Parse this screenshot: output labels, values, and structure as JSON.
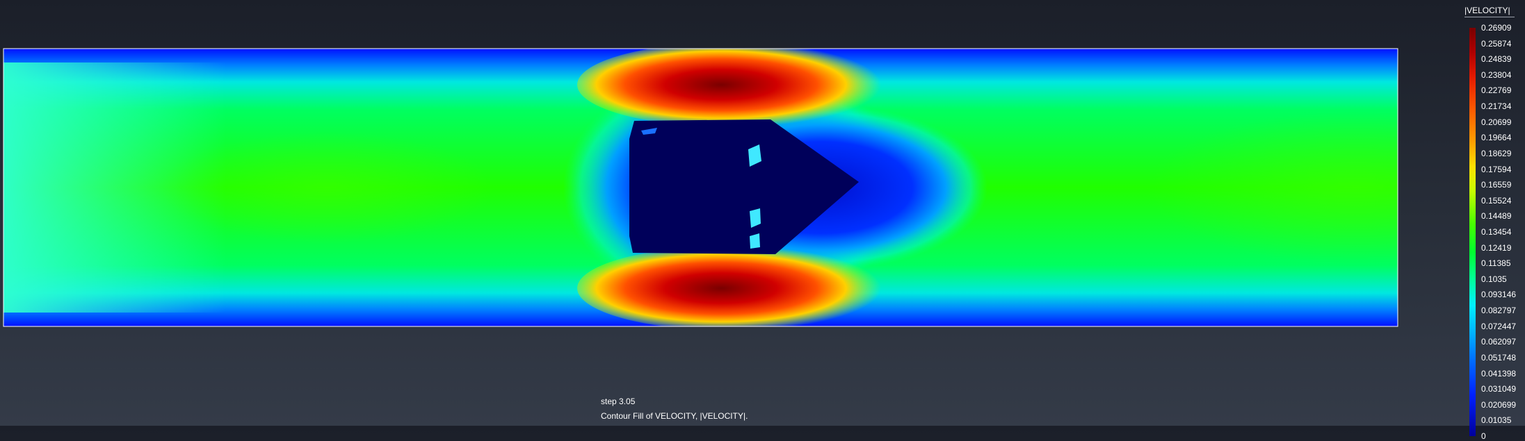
{
  "viewer": {
    "step_label": "step 3.05",
    "contour_label": "Contour Fill of VELOCITY, |VELOCITY|."
  },
  "legend": {
    "title": "|VELOCITY|",
    "values": [
      "0.26909",
      "0.25874",
      "0.24839",
      "0.23804",
      "0.22769",
      "0.21734",
      "0.20699",
      "0.19664",
      "0.18629",
      "0.17594",
      "0.16559",
      "0.15524",
      "0.14489",
      "0.13454",
      "0.12419",
      "0.11385",
      "0.1035",
      "0.093146",
      "0.082797",
      "0.072447",
      "0.062097",
      "0.051748",
      "0.041398",
      "0.031049",
      "0.020699",
      "0.01035",
      "0"
    ]
  },
  "colors": {
    "background_top": "#1b1f29",
    "background_bottom": "#343b48",
    "domain_border": "#ffffff",
    "low_velocity": "#00009a",
    "mid_velocity": "#00ff30",
    "high_velocity": "#7a0000"
  }
}
